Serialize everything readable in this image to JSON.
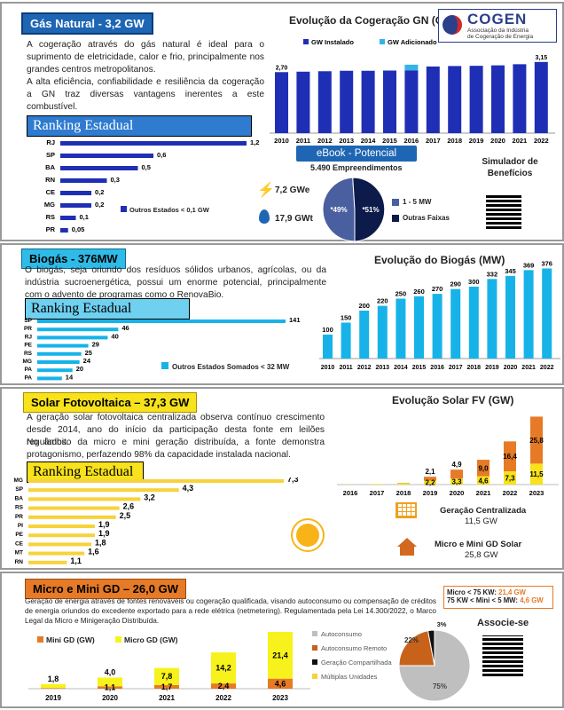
{
  "gn": {
    "title": "Gás Natural - 3,2 GW",
    "text1": "A cogeração através do gás natural é ideal para o suprimento de eletricidade, calor e frio, principalmente nos grandes centros metropolitanos.",
    "text2": "A alta eficiência, confiabilidade e resiliência da cogeração a GN traz diversas vantagens inerentes a este combustível.",
    "ranking_title": "Ranking Estadual",
    "ranking_note": "Outros Estados < 0,1 GW",
    "chart_title": "Evolução da Cogeração GN (GW)",
    "logo": "COGEN",
    "logo_sub1": "Associação da Indústria",
    "logo_sub2": "de Cogeração de Energia",
    "ebook_label": "eBook - Potencial",
    "empreendimentos": "5.490 Empreendimentos",
    "gwe": "7,2 GWe",
    "gwt": "17,9 GWt",
    "simulador": "Simulador de Benefícios"
  },
  "chart_data": [
    {
      "type": "bar",
      "title": "Evolução da Cogeração GN (GW)",
      "categories": [
        "2010",
        "2011",
        "2012",
        "2013",
        "2014",
        "2015",
        "2016",
        "2017",
        "2018",
        "2019",
        "2020",
        "2021",
        "2022"
      ],
      "series": [
        {
          "name": "GW Instalado",
          "values": [
            2.7,
            2.72,
            2.74,
            2.76,
            2.76,
            2.77,
            2.78,
            2.95,
            2.97,
            2.98,
            3.0,
            3.05,
            3.15
          ],
          "color": "#1f2fb5"
        },
        {
          "name": "GW Adicionado",
          "values": [
            0,
            0,
            0,
            0,
            0,
            0,
            0.25,
            0,
            0,
            0,
            0,
            0,
            0
          ],
          "color": "#35b3e8"
        }
      ],
      "data_labels": {
        "first": "2,70",
        "last": "3,15"
      }
    },
    {
      "type": "bar",
      "title": "Ranking Estadual GN",
      "categories": [
        "RJ",
        "SP",
        "BA",
        "RN",
        "CE",
        "MG",
        "RS",
        "PR"
      ],
      "values": [
        1.2,
        0.6,
        0.5,
        0.3,
        0.2,
        0.2,
        0.1,
        0.05
      ],
      "labels": [
        "1,2",
        "0,6",
        "0,5",
        "0,3",
        "0,2",
        "0,2",
        "0,1",
        "0,05"
      ],
      "color": "#1f2fb5"
    },
    {
      "type": "pie",
      "title": "eBook - Potencial",
      "labels": [
        "1 - 5 MW",
        "Outras Faixas"
      ],
      "values": [
        49,
        51
      ],
      "value_labels": [
        "*49%",
        "*51%"
      ],
      "colors": [
        "#4a5fa0",
        "#0d1b4a"
      ]
    },
    {
      "type": "bar",
      "title": "Evolução do Biogás (MW)",
      "categories": [
        "2010",
        "2011",
        "2012",
        "2013",
        "2014",
        "2015",
        "2016",
        "2017",
        "2018",
        "2019",
        "2020",
        "2021",
        "2022"
      ],
      "values": [
        100,
        150,
        200,
        220,
        250,
        260,
        270,
        290,
        300,
        332,
        345,
        369,
        376
      ],
      "color": "#17b3e8"
    },
    {
      "type": "bar",
      "title": "Ranking Estadual Biogás",
      "categories": [
        "SP",
        "PR",
        "RJ",
        "PE",
        "RS",
        "MG",
        "PA",
        "PA"
      ],
      "values": [
        141,
        46,
        40,
        29,
        25,
        24,
        20,
        14
      ],
      "color": "#17b3e8"
    },
    {
      "type": "bar",
      "title": "Evolução Solar FV (GW)",
      "categories": [
        "2016",
        "2017",
        "2018",
        "2019",
        "2020",
        "2021",
        "2022",
        "2023"
      ],
      "series": [
        {
          "name": "Geração Centralizada",
          "values": [
            0.1,
            0.3,
            0.7,
            2.2,
            3.3,
            4.6,
            7.3,
            11.5
          ],
          "color": "#f7e21b"
        },
        {
          "name": "Micro e Mini GD Solar",
          "values": [
            0,
            0,
            0.2,
            2.1,
            4.9,
            9.0,
            16.4,
            25.8
          ],
          "color": "#e67a26"
        }
      ],
      "labels_bottom": [
        "",
        "",
        "",
        "2,2",
        "3,3",
        "4,6",
        "7,3",
        "11,5"
      ],
      "labels_top": [
        "",
        "",
        "",
        "2,1",
        "4,9",
        "9,0",
        "16,4",
        "25,8"
      ]
    },
    {
      "type": "bar",
      "title": "Ranking Estadual Solar",
      "categories": [
        "MG",
        "SP",
        "BA",
        "RS",
        "PR",
        "PI",
        "PE",
        "CE",
        "MT",
        "RN"
      ],
      "values": [
        7.3,
        4.3,
        3.2,
        2.6,
        2.5,
        1.9,
        1.9,
        1.8,
        1.6,
        1.1
      ],
      "labels": [
        "7,3",
        "4,3",
        "3,2",
        "2,6",
        "2,5",
        "1,9",
        "1,9",
        "1,8",
        "1,6",
        "1,1"
      ],
      "color": "#f7d23a"
    },
    {
      "type": "bar",
      "title": "Micro e Mini GD (GW)",
      "categories": [
        "2019",
        "2020",
        "2021",
        "2022",
        "2023"
      ],
      "series": [
        {
          "name": "Mini GD (GW)",
          "values": [
            0.3,
            1.1,
            1.7,
            2.4,
            4.6
          ],
          "color": "#e67a26"
        },
        {
          "name": "Micro GD (GW)",
          "values": [
            1.8,
            4.0,
            7.8,
            14.2,
            21.4
          ],
          "color": "#f7f21b"
        }
      ],
      "labels_bottom": [
        "",
        "1,1",
        "1,7",
        "2,4",
        "4,6"
      ],
      "labels_top": [
        "1,8",
        "4,0",
        "7,8",
        "14,2",
        "21,4"
      ]
    },
    {
      "type": "pie",
      "title": "Micro e Mini GD modalidades",
      "labels": [
        "Autoconsumo",
        "Autoconsumo Remoto",
        "Geração Compartilhada",
        "Múltiplas Unidades"
      ],
      "values": [
        75,
        22,
        3,
        0
      ],
      "value_labels": [
        "75%",
        "22%",
        "3%",
        ""
      ],
      "colors": [
        "#bfbfbf",
        "#c8611a",
        "#111111",
        "#f7d23a"
      ]
    }
  ],
  "biogas": {
    "title": "Biogás - 376MW",
    "text": "O biogás, seja oriundo dos resíduos sólidos urbanos, agrícolas, ou da indústria sucroenergética, possui um enorme potencial, principalmente com o advento de programas como o RenovaBio.",
    "ranking_title": "Ranking Estadual",
    "ranking_note": "Outros Estados Somados < 32 MW",
    "chart_title": "Evolução do Biogás (MW)"
  },
  "solar": {
    "title": "Solar Fotovoltaica – 37,3 GW",
    "text1": "A geração solar fotovoltaica centralizada observa contínuo crescimento desde 2014, ano do início da participação desta fonte em leilões regulados.",
    "text2": "No âmbito da micro e mini geração distribuída, a fonte demonstra protagonismo, perfazendo 98% da capacidade instalada nacional.",
    "ranking_title": "Ranking Estadual",
    "chart_title": "Evolução Solar FV (GW)",
    "central_label": "Geração Centralizada",
    "central_value": "11,5 GW",
    "gd_label": "Micro e Mini GD Solar",
    "gd_value": "25,8 GW"
  },
  "gd": {
    "title": "Micro e Mini GD – 26,0 GW",
    "text": "Geração de energia através de fontes renováveis ou cogeração qualificada, visando autoconsumo ou compensação de créditos de energia oriundos do excedente exportado para a rede elétrica (netmetering). Regulamentada pela Lei 14.300/2022, o Marco Legal da Micro e Minigeração Distribuída.",
    "box_line1_label": "Micro < 75 KW:",
    "box_line1_value": "21,4 GW",
    "box_line2_label": "75 KW < Mini < 5 MW:",
    "box_line2_value": "4,6 GW",
    "associe": "Associe-se"
  }
}
